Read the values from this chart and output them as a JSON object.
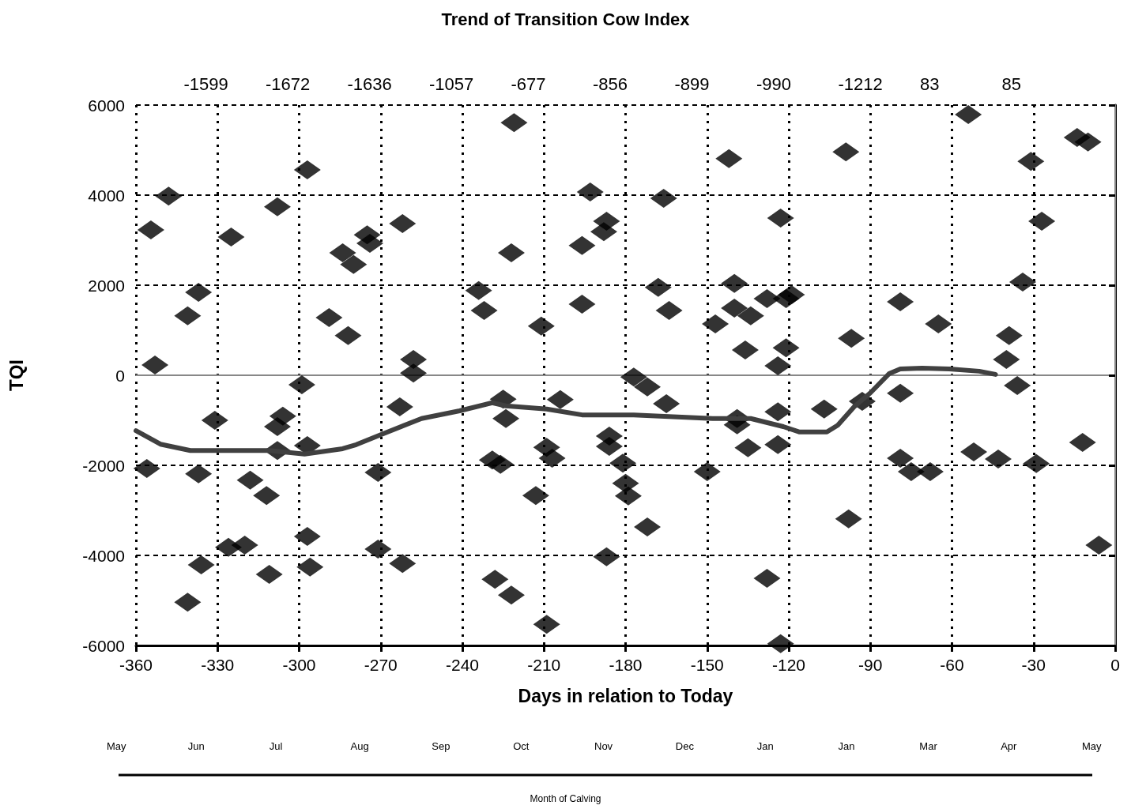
{
  "chart_data": {
    "type": "scatter",
    "title": "Trend of Transition Cow Index",
    "xlabel": "Days in relation to Today",
    "ylabel": "TQI",
    "xlim": [
      -360,
      0
    ],
    "xticks": [
      -360,
      -330,
      -300,
      -270,
      -240,
      -210,
      -180,
      -150,
      -120,
      -90,
      -60,
      -30,
      0
    ],
    "ylim": [
      -6000,
      6000
    ],
    "yticks": [
      -6000,
      -4000,
      -2000,
      0,
      2000,
      4000,
      6000
    ],
    "grid": true,
    "marker": "diamond",
    "annotations": [
      "-1599",
      "-1672",
      "-1636",
      "-1057",
      "-677",
      "-856",
      "-899",
      "-990",
      "-1212",
      "83",
      "85",
      "May",
      "Jun",
      "Jul",
      "Aug",
      "Sep",
      "Oct",
      "Nov",
      "Dec",
      "Jan",
      "Jan",
      "Mar",
      "Apr",
      "May",
      "Month of Calving"
    ],
    "series": [
      {
        "color": "#000000",
        "x": [
          -356,
          -354.5,
          -353,
          -348,
          -341,
          -341,
          -337,
          -337,
          -336,
          -331,
          -325,
          -326,
          -320,
          -318,
          -312,
          -311,
          -308,
          -306,
          -308,
          -308,
          -297,
          -299,
          -297,
          -297,
          -296,
          -289,
          -284,
          -282,
          -280,
          -275,
          -274,
          -271,
          -271,
          -262,
          -263,
          -262,
          -258,
          -258,
          -234,
          -232,
          -225,
          -224,
          -229,
          -226,
          -228,
          -222,
          -221,
          -222,
          -213,
          -211,
          -209,
          -209,
          -207,
          -204,
          -196,
          -196,
          -193,
          -187,
          -188,
          -186,
          -186,
          -187,
          -181,
          -180,
          -179,
          -177,
          -172,
          -172,
          -166,
          -168,
          -164,
          -165,
          -150,
          -147,
          -142,
          -140,
          -140,
          -139,
          -139,
          -134,
          -136,
          -135,
          -128,
          -128,
          -123,
          -124,
          -124,
          -124,
          -121,
          -119,
          -121,
          -123,
          -107,
          -99,
          -97,
          -98,
          -93,
          -79,
          -79,
          -79,
          -75,
          -68,
          -65,
          -52,
          -54,
          -43,
          -40,
          -39,
          -36,
          -34,
          -31,
          -27,
          -29,
          -12,
          -14,
          -10,
          -6
        ],
        "values": [
          -2070,
          3230,
          230,
          3980,
          1320,
          -5040,
          1840,
          -2190,
          -4210,
          -1000,
          3070,
          -3820,
          -3770,
          -2330,
          -2670,
          -4420,
          3740,
          -910,
          -1140,
          -1670,
          4560,
          -210,
          -1560,
          -3580,
          -4260,
          1280,
          2720,
          880,
          2460,
          3120,
          2930,
          -2160,
          -3860,
          3370,
          -700,
          -4180,
          350,
          50,
          1880,
          1440,
          -530,
          -960,
          -1880,
          -1980,
          -4530,
          -4880,
          5610,
          2720,
          -2670,
          1090,
          -5530,
          -1600,
          -1840,
          -540,
          2880,
          1580,
          4070,
          3420,
          3190,
          -1350,
          -1580,
          -4030,
          -1950,
          -2400,
          -2680,
          -40,
          -260,
          -3370,
          3930,
          1950,
          1440,
          -630,
          -2140,
          1140,
          4810,
          2040,
          1490,
          -960,
          -1100,
          1320,
          560,
          -1610,
          1700,
          -4510,
          3490,
          -810,
          -1540,
          210,
          1700,
          1790,
          610,
          -5960,
          -750,
          4960,
          820,
          -3190,
          -580,
          1630,
          -400,
          -1840,
          -2140,
          -2140,
          1140,
          -1700,
          5790,
          -1860,
          350,
          880,
          -230,
          2070,
          4750,
          3420,
          -1960,
          -1490,
          5280,
          5180,
          -3770
        ]
      },
      {
        "type": "line",
        "color": "#404040",
        "marker": "none",
        "line_style": "solid",
        "x": [
          -360,
          -351,
          -340,
          -331,
          -311,
          -298,
          -284,
          -279,
          -270,
          -255,
          -241,
          -229,
          -224,
          -209,
          -196,
          -177,
          -148,
          -134,
          -122,
          -116,
          -106,
          -102,
          -96,
          -90,
          -83,
          -79,
          -71,
          -61,
          -50,
          -44
        ],
        "values": [
          -1230,
          -1530,
          -1670,
          -1670,
          -1670,
          -1750,
          -1630,
          -1540,
          -1320,
          -960,
          -790,
          -610,
          -680,
          -750,
          -880,
          -880,
          -960,
          -960,
          -1140,
          -1260,
          -1260,
          -1110,
          -700,
          -390,
          40,
          140,
          160,
          140,
          90,
          20
        ]
      }
    ]
  }
}
